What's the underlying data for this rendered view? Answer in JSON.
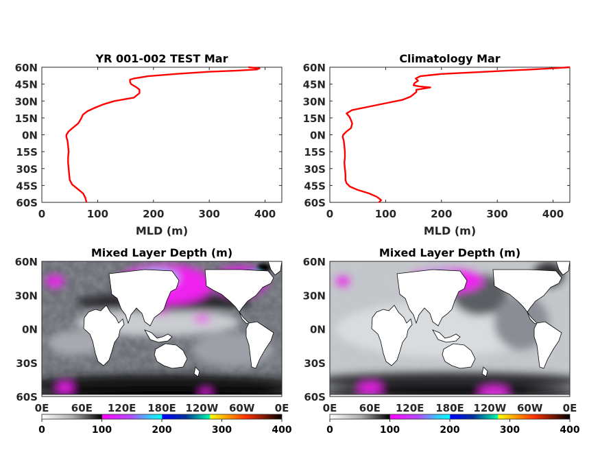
{
  "chart_data": [
    {
      "type": "line",
      "title": "YR 001-002 TEST Mar",
      "xlabel": "MLD (m)",
      "ylabel": "",
      "xlim": [
        0,
        430
      ],
      "ylim": [
        -60,
        60
      ],
      "xticks": [
        "0",
        "100",
        "200",
        "300",
        "400"
      ],
      "yticks": [
        "60N",
        "45N",
        "30N",
        "15N",
        "0N",
        "15S",
        "30S",
        "45S",
        "60S"
      ],
      "line_color": "#ff0000",
      "series": [
        {
          "lat": [
            -60,
            -56,
            -52,
            -48,
            -44,
            -40,
            -35,
            -30,
            -25,
            -20,
            -15,
            -10,
            -5,
            -2,
            0,
            3,
            6,
            10,
            14,
            18,
            21,
            24,
            27,
            30,
            33,
            35,
            37,
            40,
            42,
            45,
            47,
            49,
            50,
            52,
            54,
            56,
            57,
            58,
            59,
            60
          ],
          "mld": [
            80,
            78,
            74,
            64,
            54,
            50,
            49,
            48,
            47,
            47,
            48,
            47,
            46,
            44,
            44,
            48,
            55,
            65,
            70,
            74,
            82,
            95,
            110,
            130,
            165,
            170,
            175,
            175,
            170,
            160,
            158,
            158,
            165,
            190,
            240,
            300,
            350,
            385,
            390,
            370
          ]
        }
      ]
    },
    {
      "type": "line",
      "title": "Climatology Mar",
      "xlabel": "MLD (m)",
      "ylabel": "",
      "xlim": [
        0,
        430
      ],
      "ylim": [
        -60,
        60
      ],
      "xticks": [
        "0",
        "100",
        "200",
        "300",
        "400"
      ],
      "yticks": [
        "60N",
        "45N",
        "30N",
        "15N",
        "0N",
        "15S",
        "30S",
        "45S",
        "60S"
      ],
      "line_color": "#ff0000",
      "series": [
        {
          "lat": [
            -60,
            -58,
            -55,
            -52,
            -49,
            -46,
            -43,
            -40,
            -35,
            -30,
            -25,
            -20,
            -15,
            -10,
            -5,
            -2,
            0,
            3,
            6,
            10,
            13,
            16,
            19,
            22,
            25,
            28,
            31,
            34,
            36,
            38,
            40,
            42,
            43,
            44,
            46,
            48,
            50,
            52,
            54,
            56,
            58,
            59,
            60
          ],
          "mld": [
            88,
            92,
            84,
            70,
            50,
            36,
            30,
            28,
            28,
            27,
            26,
            27,
            27,
            26,
            25,
            23,
            24,
            30,
            38,
            40,
            38,
            35,
            30,
            40,
            70,
            100,
            130,
            145,
            150,
            155,
            155,
            180,
            160,
            150,
            152,
            158,
            154,
            162,
            200,
            280,
            360,
            400,
            430
          ]
        }
      ]
    },
    {
      "type": "heatmap",
      "title": "Mixed Layer Depth (m)",
      "xlabel": "",
      "ylabel": "",
      "xticks": [
        "0E",
        "60E",
        "120E",
        "180E",
        "120W",
        "60W",
        "0E"
      ],
      "yticks": [
        "60N",
        "30N",
        "0N",
        "30S",
        "60S"
      ],
      "colorbar_ticks": [
        "0",
        "100",
        "200",
        "300",
        "400"
      ],
      "colorbar_range": [
        0,
        400
      ],
      "colormap_stops": [
        "#ffffff",
        "#7f7f7f",
        "#000000",
        "#ff00ff",
        "#00ffff",
        "#0000aa",
        "#00ffaa",
        "#ffff00",
        "#ff0000",
        "#000000"
      ]
    },
    {
      "type": "heatmap",
      "title": "Mixed Layer Depth (m)",
      "xlabel": "",
      "ylabel": "",
      "xticks": [
        "0E",
        "60E",
        "120E",
        "180E",
        "120W",
        "60W",
        "0E"
      ],
      "yticks": [
        "60N",
        "30N",
        "0N",
        "30S",
        "60S"
      ],
      "colorbar_ticks": [
        "0",
        "100",
        "200",
        "300",
        "400"
      ],
      "colorbar_range": [
        0,
        400
      ],
      "colormap_stops": [
        "#ffffff",
        "#7f7f7f",
        "#000000",
        "#ff00ff",
        "#00ffff",
        "#0000aa",
        "#00ffaa",
        "#ffff00",
        "#ff0000",
        "#000000"
      ]
    }
  ]
}
